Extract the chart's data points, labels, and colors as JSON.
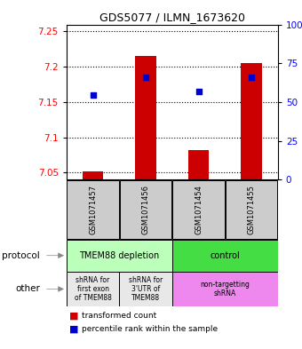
{
  "title": "GDS5077 / ILMN_1673620",
  "samples": [
    "GSM1071457",
    "GSM1071456",
    "GSM1071454",
    "GSM1071455"
  ],
  "bar_values": [
    7.052,
    7.215,
    7.082,
    7.205
  ],
  "bar_base": 7.04,
  "percentile_values": [
    7.16,
    7.185,
    7.165,
    7.185
  ],
  "ylim": [
    7.04,
    7.26
  ],
  "yticks_left": [
    7.05,
    7.1,
    7.15,
    7.2,
    7.25
  ],
  "yticks_right": [
    0,
    25,
    50,
    75,
    100
  ],
  "yticks_right_labels": [
    "0",
    "25",
    "50",
    "75",
    "100%"
  ],
  "bar_color": "#cc0000",
  "dot_color": "#0000cc",
  "protocol_row": [
    {
      "label": "TMEM88 depletion",
      "color": "#bbffbb",
      "span": [
        0,
        2
      ]
    },
    {
      "label": "control",
      "color": "#44dd44",
      "span": [
        2,
        4
      ]
    }
  ],
  "other_row": [
    {
      "label": "shRNA for\nfirst exon\nof TMEM88",
      "color": "#e8e8e8",
      "span": [
        0,
        1
      ]
    },
    {
      "label": "shRNA for\n3'UTR of\nTMEM88",
      "color": "#e8e8e8",
      "span": [
        1,
        2
      ]
    },
    {
      "label": "non-targetting\nshRNA",
      "color": "#ee88ee",
      "span": [
        2,
        4
      ]
    }
  ],
  "legend_red_label": "transformed count",
  "legend_blue_label": "percentile rank within the sample",
  "row_label_protocol": "protocol",
  "row_label_other": "other",
  "sample_bg_color": "#cccccc",
  "bar_width": 0.4
}
